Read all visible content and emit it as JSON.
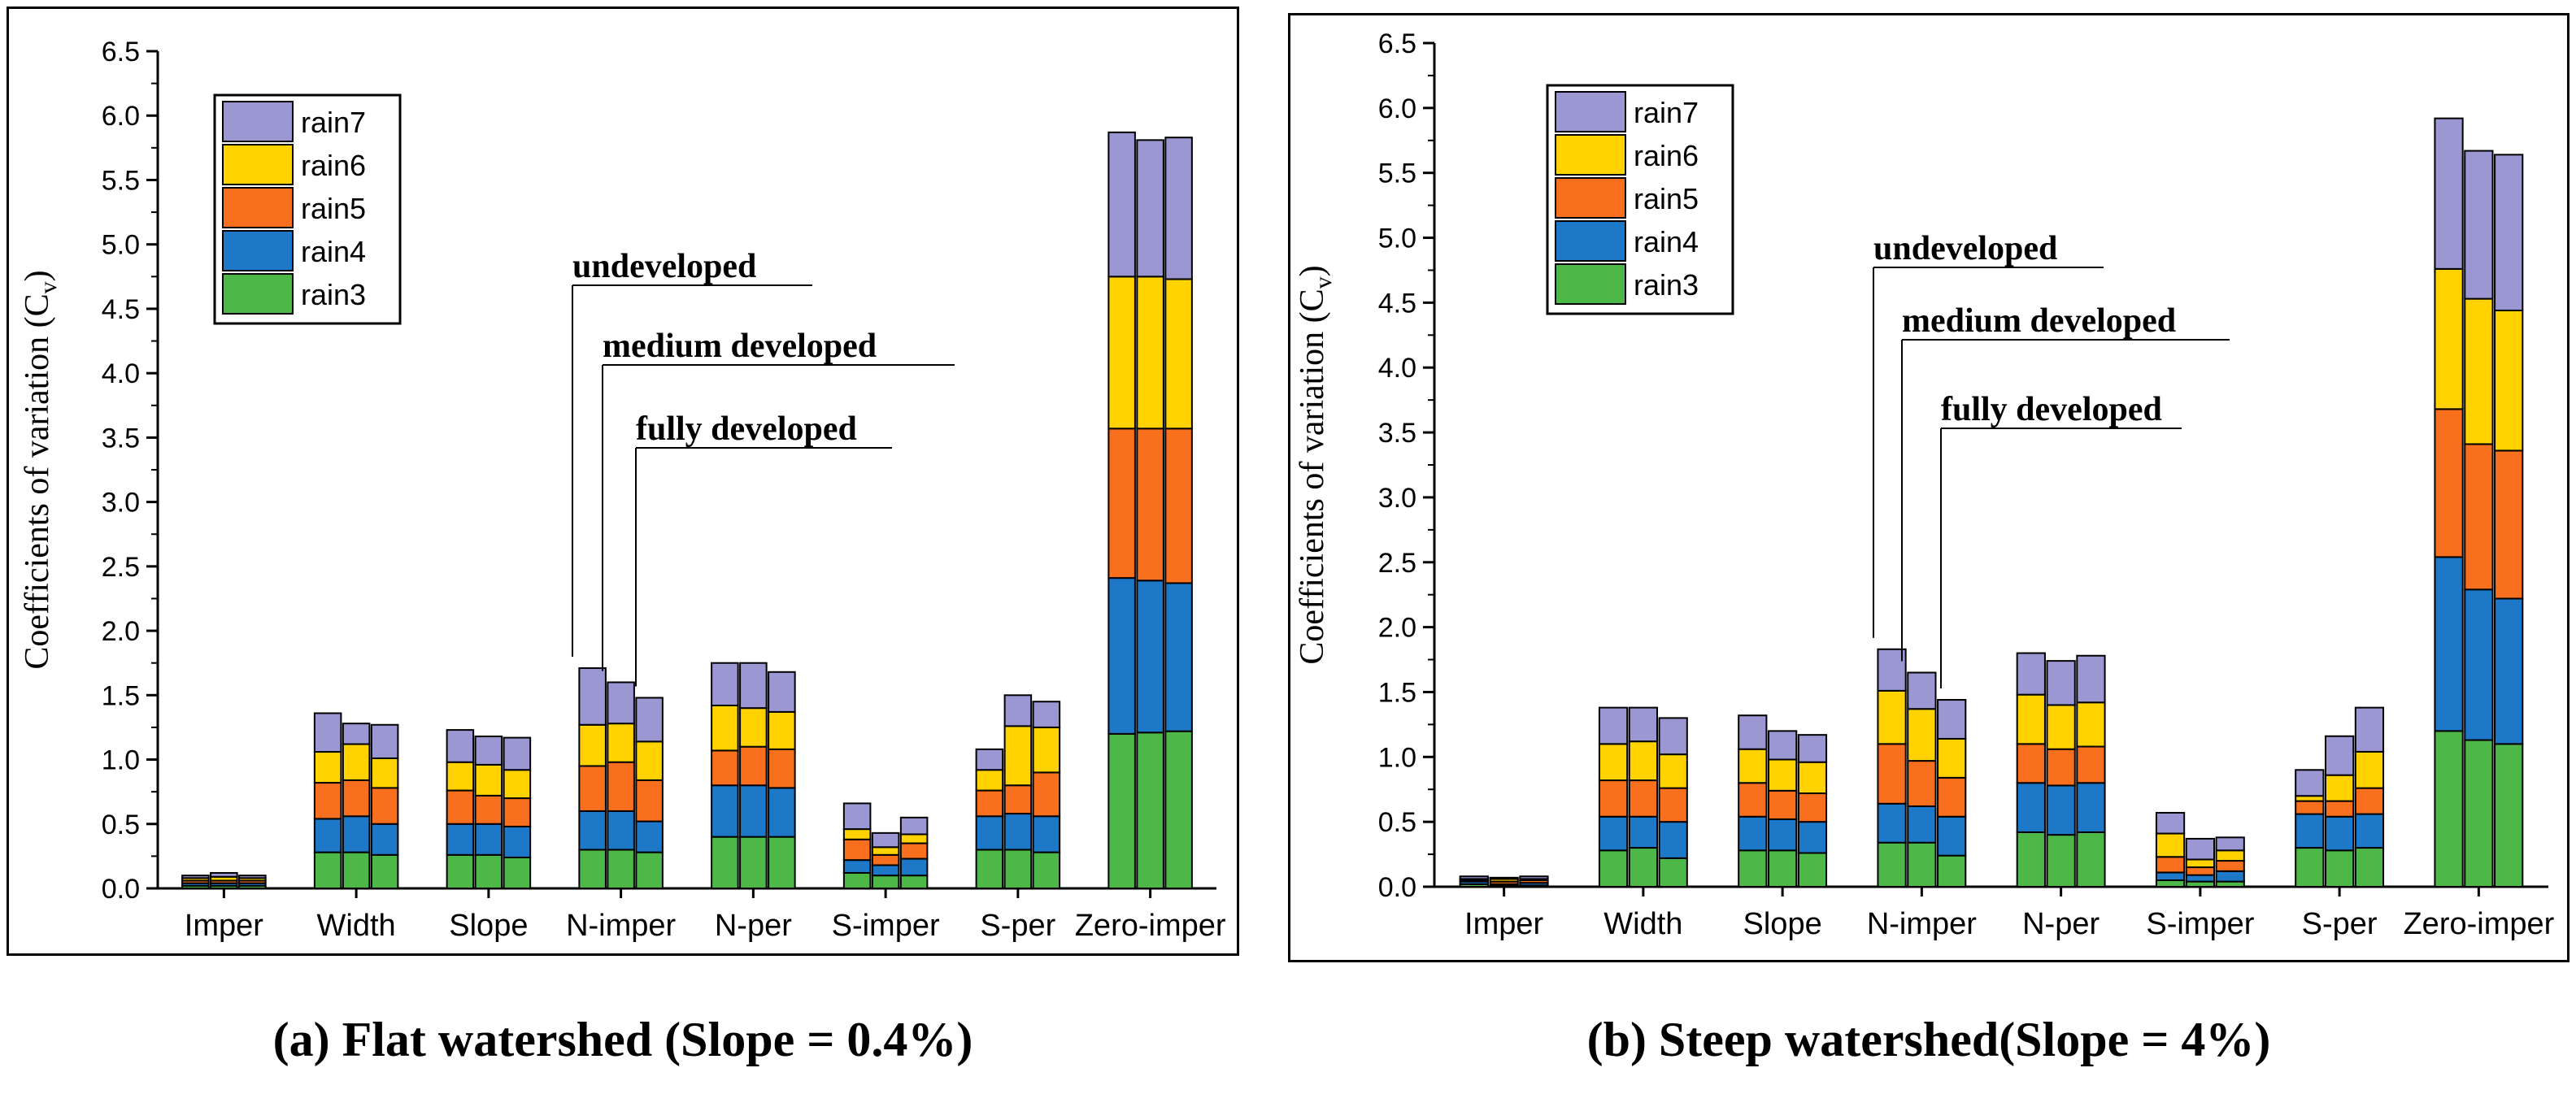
{
  "colors": {
    "rain3": "#4db848",
    "rain4": "#1e78c8",
    "rain5": "#f86f1e",
    "rain6": "#ffd200",
    "rain7": "#9b97d2",
    "stroke": "#000000"
  },
  "chart_data": [
    {
      "type": "bar",
      "stacked": true,
      "title": "",
      "caption": "(a) Flat watershed (Slope = 0.4%)",
      "xlabel": "",
      "ylabel": "Coefficients of variation (C",
      "ylabel_sub": "v",
      "ylabel_end": ")",
      "ylim": [
        0,
        6.5
      ],
      "yticks": [
        "0.0",
        "0.5",
        "1.0",
        "1.5",
        "2.0",
        "2.5",
        "3.0",
        "3.5",
        "4.0",
        "4.5",
        "5.0",
        "5.5",
        "6.0",
        "6.5"
      ],
      "categories": [
        "Imper",
        "Width",
        "Slope",
        "N-imper",
        "N-per",
        "S-imper",
        "S-per",
        "Zero-imper"
      ],
      "bars_per_category": 3,
      "legend": [
        "rain7",
        "rain6",
        "rain5",
        "rain4",
        "rain3"
      ],
      "legend_position": "top-left",
      "annotations": [
        "undeveloped",
        "medium developed",
        "fully developed"
      ],
      "series": [
        {
          "name": "rain3",
          "values": [
            [
              0.02,
              0.02,
              0.02
            ],
            [
              0.28,
              0.28,
              0.26
            ],
            [
              0.26,
              0.26,
              0.24
            ],
            [
              0.3,
              0.3,
              0.28
            ],
            [
              0.4,
              0.4,
              0.4
            ],
            [
              0.12,
              0.1,
              0.1
            ],
            [
              0.3,
              0.3,
              0.28
            ],
            [
              1.2,
              1.21,
              1.22
            ]
          ]
        },
        {
          "name": "rain4",
          "values": [
            [
              0.02,
              0.02,
              0.02
            ],
            [
              0.26,
              0.28,
              0.24
            ],
            [
              0.24,
              0.24,
              0.24
            ],
            [
              0.3,
              0.3,
              0.24
            ],
            [
              0.4,
              0.4,
              0.38
            ],
            [
              0.1,
              0.08,
              0.13
            ],
            [
              0.26,
              0.28,
              0.28
            ],
            [
              1.21,
              1.18,
              1.15
            ]
          ]
        },
        {
          "name": "rain5",
          "values": [
            [
              0.02,
              0.02,
              0.02
            ],
            [
              0.28,
              0.28,
              0.28
            ],
            [
              0.26,
              0.22,
              0.22
            ],
            [
              0.35,
              0.38,
              0.32
            ],
            [
              0.27,
              0.3,
              0.3
            ],
            [
              0.16,
              0.08,
              0.12
            ],
            [
              0.2,
              0.22,
              0.34
            ],
            [
              1.16,
              1.18,
              1.2
            ]
          ]
        },
        {
          "name": "rain6",
          "values": [
            [
              0.02,
              0.03,
              0.02
            ],
            [
              0.24,
              0.28,
              0.23
            ],
            [
              0.22,
              0.24,
              0.22
            ],
            [
              0.32,
              0.3,
              0.3
            ],
            [
              0.35,
              0.3,
              0.29
            ],
            [
              0.08,
              0.06,
              0.07
            ],
            [
              0.16,
              0.46,
              0.35
            ],
            [
              1.18,
              1.18,
              1.16
            ]
          ]
        },
        {
          "name": "rain7",
          "values": [
            [
              0.02,
              0.03,
              0.02
            ],
            [
              0.3,
              0.16,
              0.26
            ],
            [
              0.25,
              0.22,
              0.25
            ],
            [
              0.44,
              0.32,
              0.34
            ],
            [
              0.33,
              0.35,
              0.31
            ],
            [
              0.2,
              0.11,
              0.13
            ],
            [
              0.16,
              0.24,
              0.2
            ],
            [
              1.12,
              1.06,
              1.1
            ]
          ]
        }
      ]
    },
    {
      "type": "bar",
      "stacked": true,
      "title": "",
      "caption": "(b) Steep watershed(Slope = 4%)",
      "xlabel": "",
      "ylabel": "Coefficients of variation (C",
      "ylabel_sub": "v",
      "ylabel_end": ")",
      "ylim": [
        0,
        6.5
      ],
      "yticks": [
        "0.0",
        "0.5",
        "1.0",
        "1.5",
        "2.0",
        "2.5",
        "3.0",
        "3.5",
        "4.0",
        "4.5",
        "5.0",
        "5.5",
        "6.0",
        "6.5"
      ],
      "categories": [
        "Imper",
        "Width",
        "Slope",
        "N-imper",
        "N-per",
        "S-imper",
        "S-per",
        "Zero-imper"
      ],
      "bars_per_category": 3,
      "legend": [
        "rain7",
        "rain6",
        "rain5",
        "rain4",
        "rain3"
      ],
      "legend_position": "top-left",
      "annotations": [
        "undeveloped",
        "medium developed",
        "fully developed"
      ],
      "series": [
        {
          "name": "rain3",
          "values": [
            [
              0.02,
              0.01,
              0.01
            ],
            [
              0.28,
              0.3,
              0.22
            ],
            [
              0.28,
              0.28,
              0.26
            ],
            [
              0.34,
              0.34,
              0.24
            ],
            [
              0.42,
              0.4,
              0.42
            ],
            [
              0.05,
              0.04,
              0.04
            ],
            [
              0.3,
              0.28,
              0.3
            ],
            [
              1.2,
              1.13,
              1.1
            ]
          ]
        },
        {
          "name": "rain4",
          "values": [
            [
              0.02,
              0.01,
              0.02
            ],
            [
              0.26,
              0.24,
              0.28
            ],
            [
              0.26,
              0.24,
              0.24
            ],
            [
              0.3,
              0.28,
              0.3
            ],
            [
              0.38,
              0.38,
              0.38
            ],
            [
              0.06,
              0.05,
              0.08
            ],
            [
              0.26,
              0.26,
              0.26
            ],
            [
              1.34,
              1.16,
              1.12
            ]
          ]
        },
        {
          "name": "rain5",
          "values": [
            [
              0.01,
              0.02,
              0.02
            ],
            [
              0.28,
              0.28,
              0.26
            ],
            [
              0.26,
              0.22,
              0.22
            ],
            [
              0.46,
              0.35,
              0.3
            ],
            [
              0.3,
              0.28,
              0.28
            ],
            [
              0.12,
              0.06,
              0.08
            ],
            [
              0.1,
              0.12,
              0.2
            ],
            [
              1.14,
              1.12,
              1.14
            ]
          ]
        },
        {
          "name": "rain6",
          "values": [
            [
              0.01,
              0.02,
              0.01
            ],
            [
              0.28,
              0.3,
              0.26
            ],
            [
              0.26,
              0.24,
              0.24
            ],
            [
              0.41,
              0.4,
              0.3
            ],
            [
              0.38,
              0.34,
              0.34
            ],
            [
              0.18,
              0.06,
              0.08
            ],
            [
              0.04,
              0.2,
              0.28
            ],
            [
              1.08,
              1.12,
              1.08
            ]
          ]
        },
        {
          "name": "rain7",
          "values": [
            [
              0.02,
              0.01,
              0.02
            ],
            [
              0.28,
              0.26,
              0.28
            ],
            [
              0.26,
              0.22,
              0.21
            ],
            [
              0.32,
              0.28,
              0.3
            ],
            [
              0.32,
              0.34,
              0.36
            ],
            [
              0.16,
              0.16,
              0.1
            ],
            [
              0.2,
              0.3,
              0.34
            ],
            [
              1.16,
              1.14,
              1.2
            ]
          ]
        }
      ]
    }
  ]
}
